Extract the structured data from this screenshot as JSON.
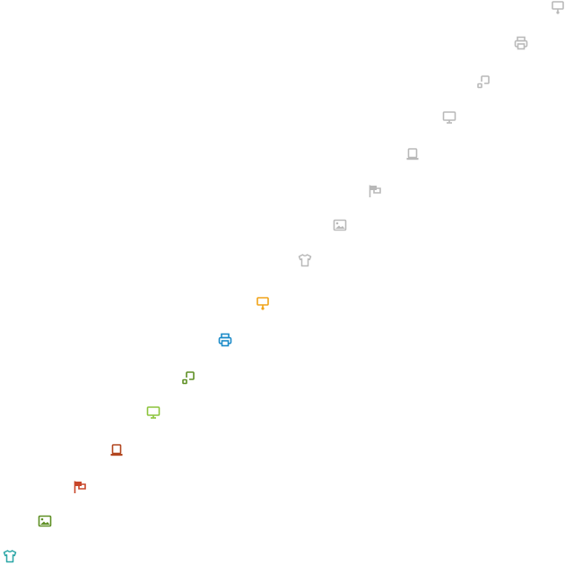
{
  "icons": [
    {
      "icon": "presentation-icon",
      "color": "#b9b9b9"
    },
    {
      "icon": "printer-icon",
      "color": "#b9b9b9"
    },
    {
      "icon": "resize-icon",
      "color": "#b9b9b9"
    },
    {
      "icon": "monitor-icon",
      "color": "#b9b9b9"
    },
    {
      "icon": "laptop-icon",
      "color": "#b9b9b9"
    },
    {
      "icon": "flag-icon",
      "color": "#b9b9b9"
    },
    {
      "icon": "image-icon",
      "color": "#b9b9b9"
    },
    {
      "icon": "shirt-icon",
      "color": "#b9b9b9"
    },
    {
      "icon": "presentation-icon",
      "color": "#f0a318"
    },
    {
      "icon": "printer-icon",
      "color": "#1a8ac8"
    },
    {
      "icon": "resize-icon",
      "color": "#5e8f24"
    },
    {
      "icon": "monitor-icon",
      "color": "#8cc43b"
    },
    {
      "icon": "laptop-icon",
      "color": "#b2461f"
    },
    {
      "icon": "flag-icon",
      "color": "#c8462a"
    },
    {
      "icon": "image-icon",
      "color": "#5e8f24"
    },
    {
      "icon": "shirt-icon",
      "color": "#2aa6a6"
    }
  ]
}
